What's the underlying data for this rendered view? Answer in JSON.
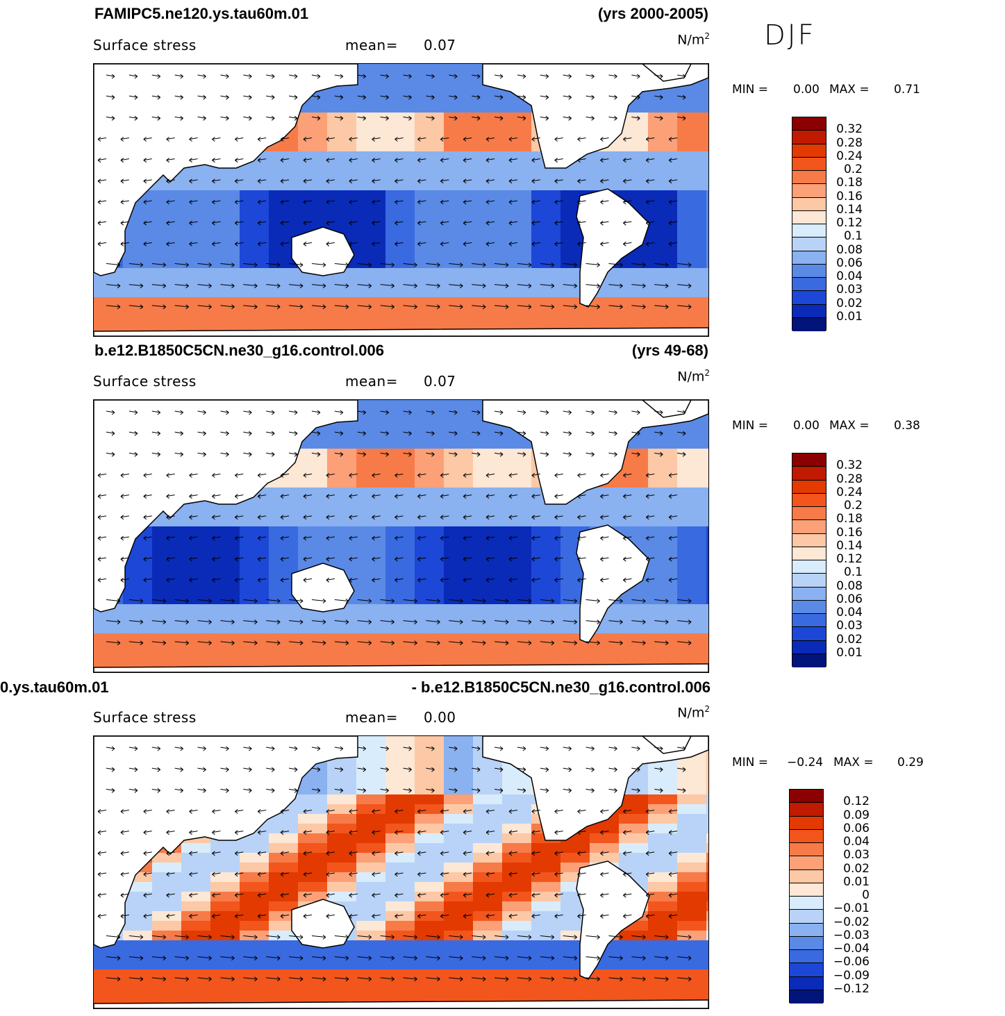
{
  "season": "DJF",
  "panels": [
    {
      "title_left": "FAMIPC5.ne120.ys.tau60m.01",
      "title_right": "(yrs 2000-2005)",
      "variable": "Surface stress",
      "mean_label": "mean=",
      "mean_value": "0.07",
      "units_base": "N/m",
      "units_exp": "2",
      "min_label": "MIN =",
      "min_value": "0.00",
      "max_label": "MAX =",
      "max_value": "0.71",
      "kind": "abs",
      "levels": [
        "0.32",
        "0.28",
        "0.24",
        "0.2",
        "0.18",
        "0.16",
        "0.14",
        "0.12",
        "0.1",
        "0.08",
        "0.06",
        "0.04",
        "0.03",
        "0.02",
        "0.01"
      ],
      "colors": [
        "#8b0000",
        "#c01a00",
        "#e23a00",
        "#f2561d",
        "#f77b48",
        "#fba077",
        "#fcc8a6",
        "#fde7d5",
        "#d9ecfb",
        "#b8d3f7",
        "#8ab1f0",
        "#5a8ae6",
        "#3a6ae0",
        "#1d47d6",
        "#0a2bb8",
        "#00147a"
      ]
    },
    {
      "title_left": "b.e12.B1850C5CN.ne30_g16.control.006",
      "title_right": "(yrs 49-68)",
      "variable": "Surface stress",
      "mean_label": "mean=",
      "mean_value": "0.07",
      "units_base": "N/m",
      "units_exp": "2",
      "min_label": "MIN =",
      "min_value": "0.00",
      "max_label": "MAX =",
      "max_value": "0.38",
      "kind": "abs",
      "levels": [
        "0.32",
        "0.28",
        "0.24",
        "0.2",
        "0.18",
        "0.16",
        "0.14",
        "0.12",
        "0.1",
        "0.08",
        "0.06",
        "0.04",
        "0.03",
        "0.02",
        "0.01"
      ],
      "colors": [
        "#8b0000",
        "#c01a00",
        "#e23a00",
        "#f2561d",
        "#f77b48",
        "#fba077",
        "#fcc8a6",
        "#fde7d5",
        "#d9ecfb",
        "#b8d3f7",
        "#8ab1f0",
        "#5a8ae6",
        "#3a6ae0",
        "#1d47d6",
        "#0a2bb8",
        "#00147a"
      ]
    },
    {
      "title_left": "0.ys.tau60m.01",
      "title_right": "- b.e12.B1850C5CN.ne30_g16.control.006",
      "variable": "Surface stress",
      "mean_label": "mean=",
      "mean_value": "0.00",
      "units_base": "N/m",
      "units_exp": "2",
      "min_label": "MIN =",
      "min_value": "−0.24",
      "max_label": "MAX =",
      "max_value": "0.29",
      "kind": "diff",
      "levels": [
        "0.12",
        "0.09",
        "0.06",
        "0.04",
        "0.03",
        "0.02",
        "0.01",
        "0",
        "−0.01",
        "−0.02",
        "−0.03",
        "−0.04",
        "−0.06",
        "−0.09",
        "−0.12"
      ],
      "colors": [
        "#8b0000",
        "#c01a00",
        "#e23a00",
        "#f2561d",
        "#f77b48",
        "#fba077",
        "#fcc8a6",
        "#fde7d5",
        "#d9ecfb",
        "#b8d3f7",
        "#8ab1f0",
        "#5a8ae6",
        "#3a6ae0",
        "#1d47d6",
        "#0a2bb8",
        "#00147a"
      ]
    }
  ]
}
